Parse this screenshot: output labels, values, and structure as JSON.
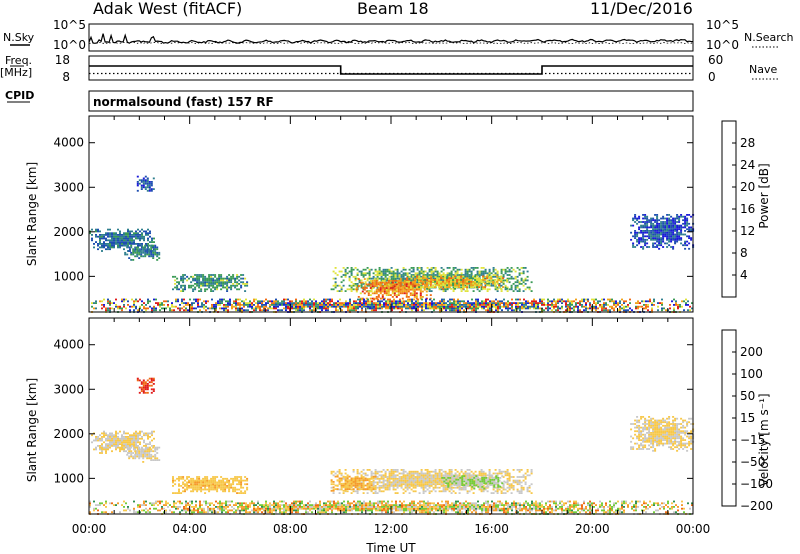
{
  "header": {
    "station": "Adak West (fitACF)",
    "beam": "Beam 18",
    "date": "11/Dec/2016"
  },
  "side_labels": {
    "n_sky": "N.Sky",
    "n_search": "N.Search",
    "freq": "Freq.",
    "freq_unit": "[MHz]",
    "nave": "Nave",
    "cpid": "CPID"
  },
  "colors": {
    "power_scale": [
      "#1a1ad8",
      "#1e4fb0",
      "#2f7f8e",
      "#3a9a55",
      "#dfe33a",
      "#f2a21a",
      "#f06a14",
      "#e01a1a"
    ],
    "velocity_scale": [
      "#e01a1a",
      "#f06a14",
      "#f59b2a",
      "#f7c84a",
      "#c8c8c8",
      "#72cc3a",
      "#2f8f4e",
      "#2a3fb0"
    ]
  },
  "chart_data": [
    {
      "type": "line",
      "panel": "n-sky-search",
      "y_left_ticks": [
        "10^5",
        "10^0"
      ],
      "y_right_ticks": [
        "10^5",
        "10^0"
      ],
      "series": [
        {
          "name": "N.Sky",
          "style": "solid"
        },
        {
          "name": "N.Search",
          "style": "dotted"
        }
      ],
      "x": [
        "00:00",
        "24:00"
      ]
    },
    {
      "type": "line",
      "panel": "freq-nave",
      "y_left_ticks": [
        18,
        8
      ],
      "y_right_ticks": [
        60,
        0
      ],
      "ylim_left": [
        8,
        18
      ],
      "ylim_right": [
        0,
        60
      ],
      "series": [
        {
          "name": "Freq.",
          "axis": "left",
          "style": "solid",
          "segments": [
            {
              "x_start": 0,
              "x_end": 10,
              "value": 14
            },
            {
              "x_start": 10,
              "x_end": 18,
              "value": 10
            },
            {
              "x_start": 18,
              "x_end": 24,
              "value": 14
            }
          ]
        },
        {
          "name": "Nave",
          "axis": "right",
          "style": "dotted",
          "segments": [
            {
              "x_start": 0,
              "x_end": 24,
              "value": 15
            }
          ]
        }
      ]
    },
    {
      "type": "table",
      "panel": "cpid",
      "cpid_text": "normalsound (fast) 157 RF"
    },
    {
      "type": "heatmap",
      "panel": "power",
      "xlabel": "",
      "ylabel": "Slant Range [km]",
      "ylim": [
        200,
        4600
      ],
      "xlim_hours": [
        0,
        24
      ],
      "y_ticks": [
        1000,
        2000,
        3000,
        4000
      ],
      "colorbar": {
        "label": "Power [dB]",
        "ticks": [
          4,
          8,
          12,
          16,
          20,
          24,
          28
        ],
        "range": [
          0,
          32
        ]
      },
      "regions": [
        {
          "t0": 0.0,
          "t1": 2.6,
          "r0": 1550,
          "r1": 2050,
          "value": 9
        },
        {
          "t0": 1.4,
          "t1": 2.8,
          "r0": 1350,
          "r1": 1700,
          "value": 10
        },
        {
          "t0": 1.9,
          "t1": 2.6,
          "r0": 2900,
          "r1": 3250,
          "value": 7
        },
        {
          "t0": 3.3,
          "t1": 6.3,
          "r0": 650,
          "r1": 1050,
          "value": 12
        },
        {
          "t0": 9.6,
          "t1": 17.6,
          "r0": 650,
          "r1": 1200,
          "value": 14
        },
        {
          "t0": 10.6,
          "t1": 13.6,
          "r0": 480,
          "r1": 950,
          "value": 24
        },
        {
          "t0": 12.6,
          "t1": 16.6,
          "r0": 700,
          "r1": 1000,
          "value": 20
        },
        {
          "t0": 21.5,
          "t1": 24.0,
          "r0": 1600,
          "r1": 2400,
          "value": 6
        },
        {
          "t0": 0.0,
          "t1": 24.0,
          "r0": 180,
          "r1": 480,
          "value": 16
        }
      ]
    },
    {
      "type": "heatmap",
      "panel": "velocity",
      "xlabel": "Time UT",
      "ylabel": "Slant Range [km]",
      "ylim": [
        200,
        4600
      ],
      "xlim_hours": [
        0,
        24
      ],
      "x_tick_labels": [
        "00:00",
        "04:00",
        "08:00",
        "12:00",
        "16:00",
        "20:00",
        "00:00"
      ],
      "y_ticks": [
        1000,
        2000,
        3000,
        4000
      ],
      "colorbar": {
        "label": "Velocity [m s⁻¹]",
        "ticks": [
          200,
          100,
          50,
          15,
          -15,
          -50,
          -100,
          -200
        ],
        "range": [
          -250,
          250
        ]
      },
      "regions": [
        {
          "t0": 0.0,
          "t1": 2.6,
          "r0": 1550,
          "r1": 2050,
          "value": 0
        },
        {
          "t0": 1.4,
          "t1": 2.8,
          "r0": 1350,
          "r1": 1700,
          "value": 5
        },
        {
          "t0": 1.9,
          "t1": 2.6,
          "r0": 2900,
          "r1": 3250,
          "value": -200
        },
        {
          "t0": 3.3,
          "t1": 6.3,
          "r0": 650,
          "r1": 1050,
          "value": -40
        },
        {
          "t0": 9.6,
          "t1": 17.6,
          "r0": 650,
          "r1": 1200,
          "value": 0
        },
        {
          "t0": 9.6,
          "t1": 11.4,
          "r0": 700,
          "r1": 1050,
          "value": -60
        },
        {
          "t0": 14.0,
          "t1": 16.6,
          "r0": 750,
          "r1": 1050,
          "value": 60
        },
        {
          "t0": 21.5,
          "t1": 24.0,
          "r0": 1600,
          "r1": 2400,
          "value": 0
        },
        {
          "t0": 0.0,
          "t1": 24.0,
          "r0": 180,
          "r1": 480,
          "value": -30
        }
      ]
    }
  ]
}
